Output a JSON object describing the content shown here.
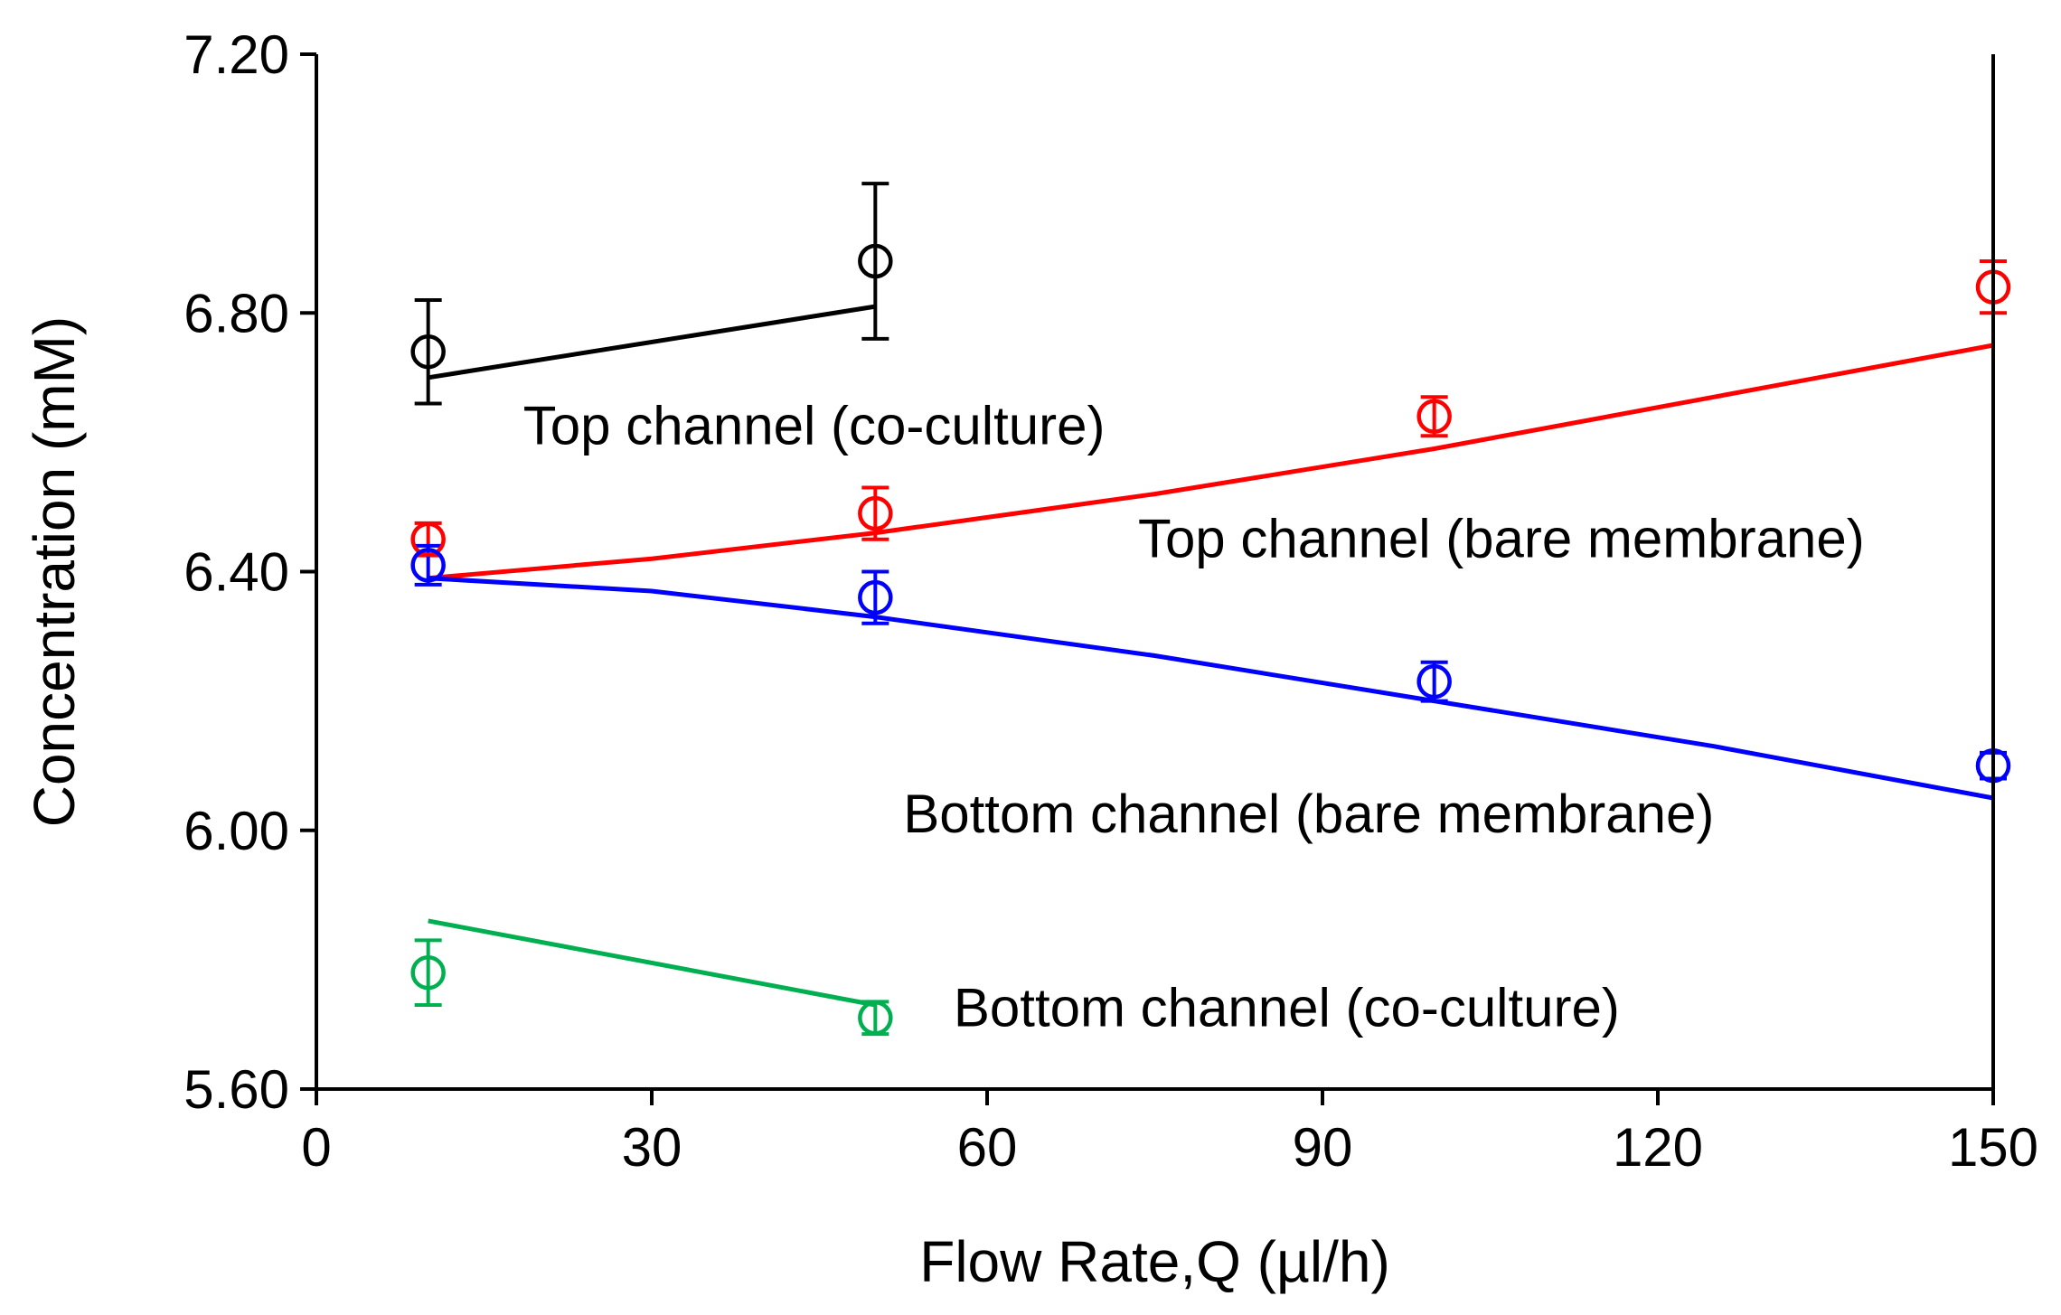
{
  "chart_data": {
    "type": "scatter",
    "xlabel": "Flow Rate,Q (µl/h)",
    "ylabel": "Concentration (mM)",
    "xlim": [
      0,
      150
    ],
    "ylim": [
      5.6,
      7.2
    ],
    "x_ticks": [
      "0",
      "30",
      "60",
      "90",
      "120",
      "150"
    ],
    "y_ticks": [
      "5.60",
      "6.00",
      "6.40",
      "6.80",
      "7.20"
    ],
    "grid": false,
    "legend": "none",
    "series": [
      {
        "color": "#000000",
        "points": [
          {
            "x": 10,
            "y": 6.74,
            "err": 0.08
          },
          {
            "x": 50,
            "y": 6.88,
            "err": 0.12
          }
        ],
        "fit": [
          [
            10,
            6.7
          ],
          [
            50,
            6.81
          ]
        ]
      },
      {
        "color": "#ff0000",
        "points": [
          {
            "x": 10,
            "y": 6.45,
            "err": 0.025
          },
          {
            "x": 50,
            "y": 6.49,
            "err": 0.04
          },
          {
            "x": 100,
            "y": 6.64,
            "err": 0.03
          },
          {
            "x": 150,
            "y": 6.84,
            "err": 0.04
          }
        ],
        "fit": [
          [
            10,
            6.39
          ],
          [
            30,
            6.42
          ],
          [
            50,
            6.46
          ],
          [
            75,
            6.52
          ],
          [
            100,
            6.59
          ],
          [
            125,
            6.67
          ],
          [
            150,
            6.75
          ]
        ]
      },
      {
        "color": "#0000ff",
        "points": [
          {
            "x": 10,
            "y": 6.41,
            "err": 0.03
          },
          {
            "x": 50,
            "y": 6.36,
            "err": 0.04
          },
          {
            "x": 100,
            "y": 6.23,
            "err": 0.03
          },
          {
            "x": 150,
            "y": 6.1,
            "err": 0.02
          }
        ],
        "fit": [
          [
            10,
            6.39
          ],
          [
            30,
            6.37
          ],
          [
            50,
            6.33
          ],
          [
            75,
            6.27
          ],
          [
            100,
            6.2
          ],
          [
            125,
            6.13
          ],
          [
            150,
            6.05
          ]
        ]
      },
      {
        "color": "#00b050",
        "points": [
          {
            "x": 10,
            "y": 5.78,
            "err": 0.05
          },
          {
            "x": 50,
            "y": 5.71,
            "err": 0.025
          }
        ],
        "fit": [
          [
            10,
            5.86
          ],
          [
            50,
            5.73
          ]
        ]
      }
    ],
    "annotations": [
      {
        "text": "Top channel (co-culture)",
        "x": 18.5,
        "y": 6.625
      },
      {
        "text": "Top channel (bare membrane)",
        "x": 73.5,
        "y": 6.45
      },
      {
        "text": "Bottom channel (bare membrane)",
        "x": 52.5,
        "y": 6.025
      },
      {
        "text": "Bottom channel (co-culture)",
        "x": 57,
        "y": 5.725
      }
    ]
  }
}
